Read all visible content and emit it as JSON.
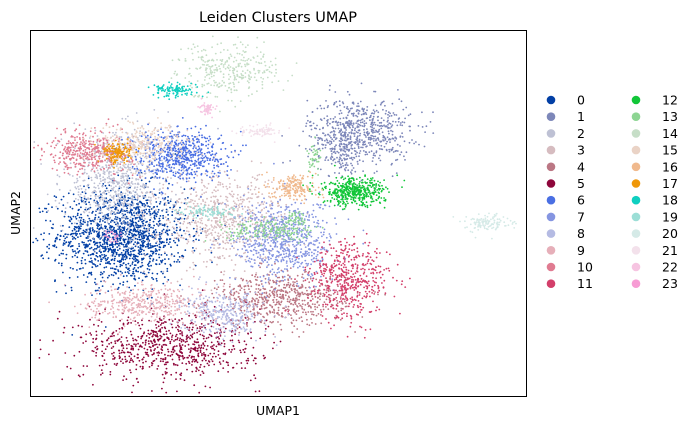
{
  "chart_data": {
    "type": "scatter",
    "title": "Leiden Clusters UMAP",
    "xlabel": "UMAP1",
    "ylabel": "UMAP2",
    "xlim": [
      0,
      100
    ],
    "ylim": [
      0,
      100
    ],
    "grid": false,
    "axis_ticks": false,
    "legend": {
      "placement": "right, outside plot",
      "columns": 2
    },
    "series": [
      {
        "name": "0",
        "color": "#023fa5",
        "clusters": [
          {
            "cx": 18.4,
            "cy": 44.0,
            "sx": 6.5,
            "sy": 6.5,
            "n": 1500
          }
        ]
      },
      {
        "name": "1",
        "color": "#7d87b9",
        "clusters": [
          {
            "cx": 66.3,
            "cy": 72.4,
            "sx": 5.2,
            "sy": 4.6,
            "n": 650
          },
          {
            "cx": 63.2,
            "cy": 66.5,
            "sx": 1.5,
            "sy": 2.6,
            "n": 90
          }
        ]
      },
      {
        "name": "2",
        "color": "#bec1d4",
        "clusters": [
          {
            "cx": 17.5,
            "cy": 58.0,
            "sx": 5.6,
            "sy": 7.0,
            "n": 700
          }
        ]
      },
      {
        "name": "3",
        "color": "#d6bcc0",
        "clusters": [
          {
            "cx": 38.8,
            "cy": 48.5,
            "sx": 6.5,
            "sy": 6.2,
            "n": 700
          }
        ]
      },
      {
        "name": "4",
        "color": "#bb7784",
        "clusters": [
          {
            "cx": 50.3,
            "cy": 26.5,
            "sx": 6.5,
            "sy": 3.6,
            "n": 600
          }
        ]
      },
      {
        "name": "5",
        "color": "#8e063b",
        "clusters": [
          {
            "cx": 28.2,
            "cy": 13.8,
            "sx": 9.0,
            "sy": 4.6,
            "n": 750
          }
        ]
      },
      {
        "name": "6",
        "color": "#4a6fe3",
        "clusters": [
          {
            "cx": 29.8,
            "cy": 66.2,
            "sx": 4.6,
            "sy": 3.4,
            "n": 600
          }
        ]
      },
      {
        "name": "7",
        "color": "#8595e1",
        "clusters": [
          {
            "cx": 51.2,
            "cy": 42.5,
            "sx": 5.0,
            "sy": 5.6,
            "n": 700
          }
        ]
      },
      {
        "name": "8",
        "color": "#b5bbe3",
        "clusters": [
          {
            "cx": 38.8,
            "cy": 22.5,
            "sx": 4.0,
            "sy": 3.0,
            "n": 330
          }
        ]
      },
      {
        "name": "9",
        "color": "#e6afb9",
        "clusters": [
          {
            "cx": 23.2,
            "cy": 25.5,
            "sx": 6.0,
            "sy": 2.6,
            "n": 400
          }
        ]
      },
      {
        "name": "10",
        "color": "#e07b91",
        "clusters": [
          {
            "cx": 11.8,
            "cy": 67.0,
            "sx": 4.2,
            "sy": 2.8,
            "n": 400
          }
        ]
      },
      {
        "name": "11",
        "color": "#d33f6a",
        "clusters": [
          {
            "cx": 64.3,
            "cy": 31.8,
            "sx": 4.0,
            "sy": 5.4,
            "n": 500
          }
        ]
      },
      {
        "name": "12",
        "color": "#11c638",
        "clusters": [
          {
            "cx": 65.1,
            "cy": 55.8,
            "sx": 3.2,
            "sy": 1.9,
            "n": 450
          }
        ]
      },
      {
        "name": "13",
        "color": "#8dd593",
        "clusters": [
          {
            "cx": 49.2,
            "cy": 45.2,
            "sx": 4.8,
            "sy": 1.4,
            "n": 180
          },
          {
            "cx": 57.3,
            "cy": 65.5,
            "sx": 0.6,
            "sy": 2.0,
            "n": 40
          },
          {
            "cx": 53.4,
            "cy": 49.0,
            "sx": 1.0,
            "sy": 1.0,
            "n": 40
          }
        ]
      },
      {
        "name": "14",
        "color": "#c6dec7",
        "clusters": [
          {
            "cx": 39.8,
            "cy": 89.5,
            "sx": 5.0,
            "sy": 3.8,
            "n": 320
          }
        ]
      },
      {
        "name": "15",
        "color": "#ead3c6",
        "clusters": [
          {
            "cx": 22.5,
            "cy": 68.8,
            "sx": 4.8,
            "sy": 2.8,
            "n": 320
          }
        ]
      },
      {
        "name": "16",
        "color": "#f0b98d",
        "clusters": [
          {
            "cx": 53.2,
            "cy": 57.0,
            "sx": 2.3,
            "sy": 1.8,
            "n": 180
          }
        ]
      },
      {
        "name": "17",
        "color": "#ef9708",
        "clusters": [
          {
            "cx": 17.4,
            "cy": 66.8,
            "sx": 1.5,
            "sy": 1.4,
            "n": 140
          }
        ]
      },
      {
        "name": "18",
        "color": "#0fcfc0",
        "clusters": [
          {
            "cx": 29.2,
            "cy": 83.8,
            "sx": 2.2,
            "sy": 0.9,
            "n": 120
          }
        ]
      },
      {
        "name": "19",
        "color": "#9cded6",
        "clusters": [
          {
            "cx": 35.9,
            "cy": 50.5,
            "sx": 2.8,
            "sy": 0.8,
            "n": 90
          }
        ]
      },
      {
        "name": "20",
        "color": "#d5eae7",
        "clusters": [
          {
            "cx": 92.2,
            "cy": 47.5,
            "sx": 2.2,
            "sy": 1.1,
            "n": 120
          }
        ]
      },
      {
        "name": "21",
        "color": "#f3e1eb",
        "clusters": [
          {
            "cx": 46.6,
            "cy": 72.5,
            "sx": 2.0,
            "sy": 0.8,
            "n": 80
          }
        ]
      },
      {
        "name": "22",
        "color": "#f6c4e1",
        "clusters": [
          {
            "cx": 35.5,
            "cy": 78.8,
            "sx": 0.8,
            "sy": 0.9,
            "n": 50
          }
        ]
      },
      {
        "name": "23",
        "color": "#f79cd4",
        "clusters": [
          {
            "cx": 16.5,
            "cy": 44.0,
            "sx": 0.8,
            "sy": 0.8,
            "n": 25
          }
        ]
      }
    ]
  }
}
